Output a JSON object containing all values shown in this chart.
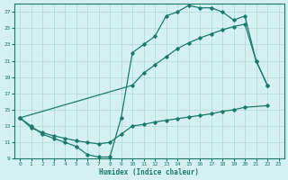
{
  "xlabel": "Humidex (Indice chaleur)",
  "color": "#1a7a6e",
  "bg_color": "#d4f0f0",
  "grid_color": "#b0d8d8",
  "ylim": [
    9,
    28
  ],
  "xlim": [
    -0.5,
    23.5
  ],
  "yticks": [
    9,
    11,
    13,
    15,
    17,
    19,
    21,
    23,
    25,
    27
  ],
  "xticks": [
    0,
    1,
    2,
    3,
    4,
    5,
    6,
    7,
    8,
    9,
    10,
    11,
    12,
    13,
    14,
    15,
    16,
    17,
    18,
    19,
    20,
    21,
    22,
    23
  ],
  "line1_x": [
    0,
    1,
    2,
    3,
    4,
    5,
    6,
    7,
    8,
    9,
    10,
    11,
    12,
    13,
    14,
    15,
    16,
    17,
    18,
    19,
    20,
    21,
    22
  ],
  "line1_y": [
    14,
    13,
    12,
    11.5,
    11,
    10.5,
    9.5,
    9.2,
    9.2,
    14.0,
    22.0,
    23.0,
    24.0,
    26.5,
    27.0,
    27.8,
    27.5,
    27.5,
    27.0,
    26.0,
    26.5,
    21.0,
    18.0
  ],
  "line2_x": [
    0,
    1,
    2,
    3,
    4,
    5,
    6,
    7,
    8,
    9,
    10,
    11,
    12,
    13,
    14,
    15,
    16,
    17,
    18,
    19,
    20,
    22
  ],
  "line2_y": [
    14,
    12.8,
    12.2,
    11.8,
    11.5,
    11.2,
    11.0,
    10.8,
    11.0,
    12.0,
    13.0,
    13.2,
    13.5,
    13.7,
    13.9,
    14.1,
    14.3,
    14.5,
    14.8,
    15.0,
    15.3,
    15.5
  ],
  "line3_x": [
    0,
    10,
    11,
    12,
    13,
    14,
    15,
    16,
    17,
    18,
    19,
    20,
    21,
    22
  ],
  "line3_y": [
    14,
    18.0,
    19.5,
    20.5,
    21.5,
    22.5,
    23.2,
    23.8,
    24.3,
    24.8,
    25.2,
    25.5,
    21.0,
    18.0
  ]
}
